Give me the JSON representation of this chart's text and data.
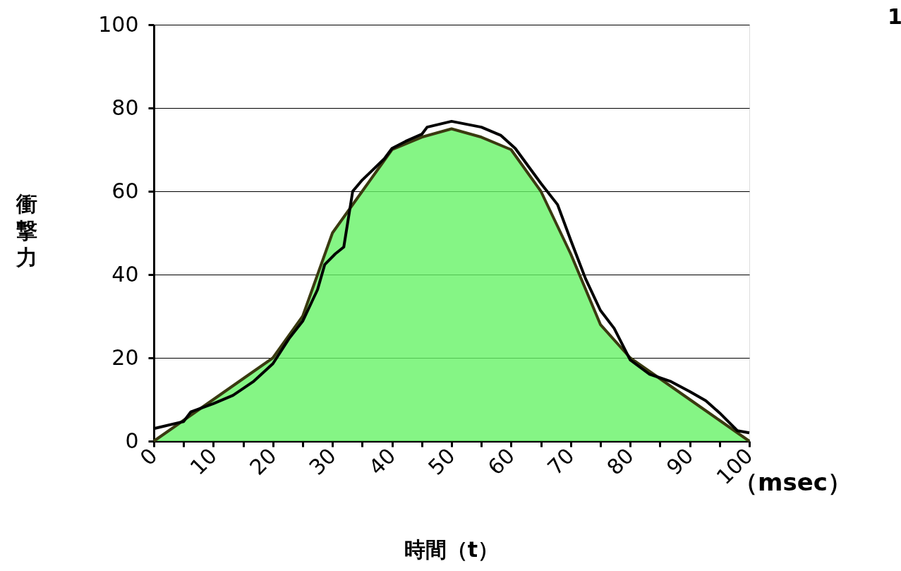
{
  "chart_data": {
    "type": "area",
    "xlabel": "時間（t）",
    "ylabel": "衝撃力",
    "annotations": [
      "（msec）",
      "1"
    ],
    "xlim": [
      0,
      100
    ],
    "ylim": [
      0,
      100
    ],
    "xticks": [
      0,
      {
        "value": 5,
        "label": null
      },
      10,
      {
        "value": 15,
        "label": null
      },
      20,
      {
        "value": 25,
        "label": null
      },
      30,
      {
        "value": 35,
        "label": null
      },
      40,
      {
        "value": 45,
        "label": null
      },
      50,
      {
        "value": 55,
        "label": null
      },
      60,
      {
        "value": 65,
        "label": null
      },
      70,
      {
        "value": 75,
        "label": null
      },
      80,
      {
        "value": 85,
        "label": null
      },
      90,
      {
        "value": 95,
        "label": null
      },
      100
    ],
    "yticks": [
      0,
      20,
      40,
      60,
      80,
      100
    ],
    "grid": "y",
    "series": [
      {
        "color": "#3a3a10",
        "x": [
          0,
          5,
          10,
          15,
          20,
          25,
          30,
          35,
          40,
          45,
          50,
          55,
          60,
          65,
          70,
          75,
          80,
          85,
          90,
          95,
          100
        ],
        "values": [
          0,
          5,
          10,
          15,
          20,
          30,
          50,
          60,
          70,
          73,
          75,
          73,
          70,
          60,
          45,
          28,
          20,
          15,
          10,
          5,
          0
        ]
      },
      {
        "type": "line",
        "color": "#000000",
        "x": [
          0,
          5,
          6.2,
          10,
          13.3,
          16.8,
          20,
          22.7,
          25,
          27.5,
          28.7,
          30.5,
          31.9,
          33.4,
          35,
          38.7,
          40,
          42.3,
          45,
          45.9,
          50,
          55,
          58.3,
          60.7,
          65,
          67.8,
          70,
          72.5,
          75,
          77.3,
          80,
          83.2,
          86.7,
          90,
          92.7,
          95,
          98,
          100
        ],
        "values": [
          3,
          4.7,
          7,
          9,
          11,
          14.4,
          18.6,
          24.6,
          28.8,
          36.4,
          42.4,
          45,
          46.6,
          60,
          62.7,
          67.8,
          70.3,
          72,
          73.7,
          75.4,
          76.8,
          75.4,
          73.4,
          70.3,
          61.9,
          56.8,
          48.3,
          39,
          31.4,
          27.1,
          19.5,
          16.1,
          14.4,
          11.9,
          9.7,
          6.8,
          2.5,
          2
        ]
      }
    ]
  }
}
